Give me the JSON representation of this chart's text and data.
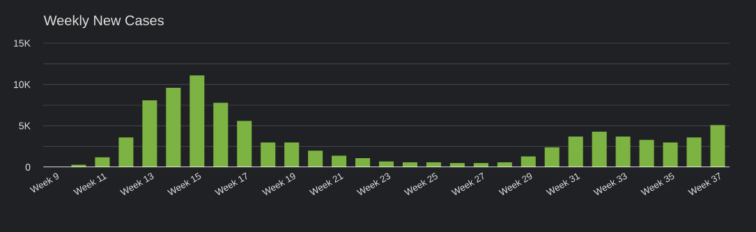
{
  "chart_data": {
    "type": "bar",
    "title": "Weekly New Cases",
    "categories": [
      "Week 9",
      null,
      "Week 11",
      null,
      "Week 13",
      null,
      "Week 15",
      null,
      "Week 17",
      null,
      "Week 19",
      null,
      "Week 21",
      null,
      "Week 23",
      null,
      "Week 25",
      null,
      "Week 27",
      null,
      "Week 29",
      null,
      "Week 31",
      null,
      "Week 33",
      null,
      "Week 35",
      null,
      "Week 37"
    ],
    "values": [
      0,
      300,
      1200,
      3600,
      8100,
      9600,
      11100,
      7800,
      5600,
      3000,
      3000,
      2000,
      1400,
      1100,
      700,
      600,
      600,
      500,
      500,
      600,
      1300,
      2400,
      3700,
      4300,
      3700,
      3300,
      3000,
      3600,
      5100
    ],
    "color": "#7cb342",
    "ylim": [
      0,
      15000
    ],
    "yticks": [
      0,
      {
        "value": 2500,
        "label": null
      },
      {
        "value": 5000,
        "label": "5K"
      },
      {
        "value": 7500,
        "label": null
      },
      {
        "value": 10000,
        "label": "10K"
      },
      {
        "value": 12500,
        "label": null
      },
      {
        "value": 15000,
        "label": "15K"
      }
    ],
    "grid": "y"
  }
}
